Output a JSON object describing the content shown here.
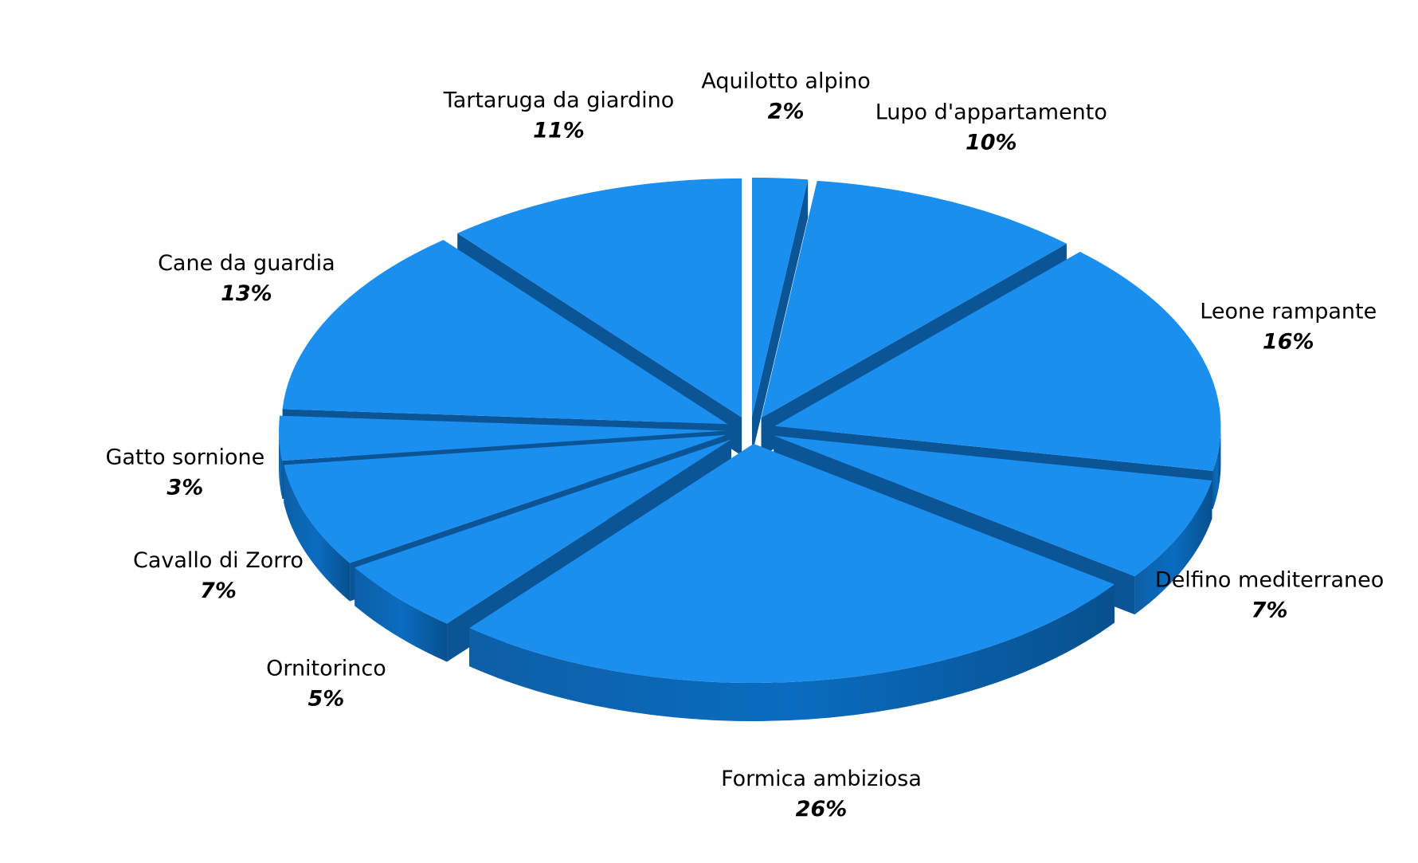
{
  "chart_data": {
    "type": "pie3d",
    "categories": [
      "Aquilotto  alpino",
      "Lupo d'appartamento",
      "Leone rampante",
      "Delfino mediterraneo",
      "Formica ambiziosa",
      "Ornitorinco",
      "Cavallo di Zorro",
      "Gatto sornione",
      "Cane da guardia",
      "Tartaruga da giardino"
    ],
    "values": [
      2,
      10,
      16,
      7,
      26,
      5,
      7,
      3,
      13,
      11
    ],
    "value_labels": [
      "2%",
      "10%",
      "16%",
      "7%",
      "26%",
      "5%",
      "7%",
      "3%",
      "13%",
      "11%"
    ],
    "color": "#1a8ff0"
  }
}
